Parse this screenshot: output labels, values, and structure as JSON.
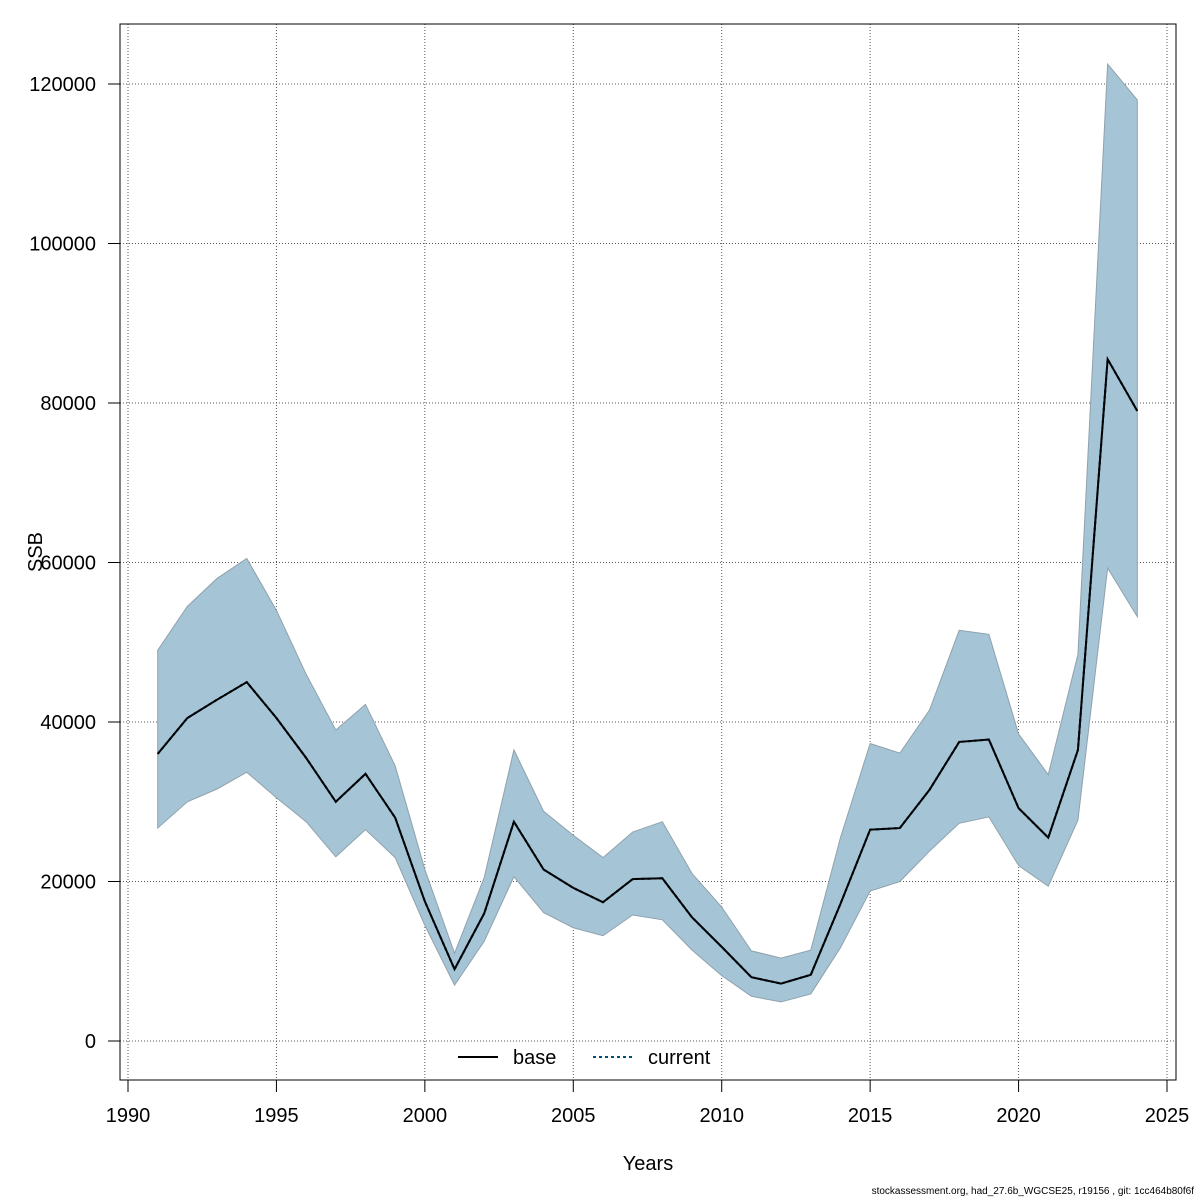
{
  "chart_data": {
    "type": "line",
    "xlabel": "Years",
    "ylabel": "SSB",
    "xlim": [
      1990,
      2025
    ],
    "ylim": [
      0,
      120000
    ],
    "xticks": [
      1990,
      1995,
      2000,
      2005,
      2010,
      2015,
      2020,
      2025
    ],
    "yticks": [
      0,
      20000,
      40000,
      60000,
      80000,
      100000,
      120000
    ],
    "x": [
      1991,
      1992,
      1993,
      1994,
      1995,
      1996,
      1997,
      1998,
      1999,
      2000,
      2001,
      2002,
      2003,
      2004,
      2005,
      2006,
      2007,
      2008,
      2009,
      2010,
      2011,
      2012,
      2013,
      2014,
      2015,
      2016,
      2017,
      2018,
      2019,
      2020,
      2021,
      2022,
      2023,
      2024
    ],
    "series": [
      {
        "name": "base",
        "line_style": "solid",
        "values": [
          36000,
          40500,
          42800,
          45000,
          40500,
          35500,
          30000,
          33500,
          28000,
          17500,
          9000,
          16000,
          27500,
          21500,
          19200,
          17400,
          20300,
          20400,
          15500,
          11800,
          8000,
          7200,
          8300,
          17200,
          26500,
          26700,
          31500,
          37500,
          37800,
          29200,
          25500,
          36500,
          85500,
          79000
        ]
      },
      {
        "name": "current",
        "line_style": "dotted",
        "values": [
          36000,
          40500,
          42800,
          45000,
          40500,
          35500,
          30000,
          33500,
          28000,
          17500,
          9000,
          16000,
          27500,
          21500,
          19200,
          17400,
          20300,
          20400,
          15500,
          11800,
          8000,
          7200,
          8300,
          17200,
          26500,
          26700,
          31500,
          37500,
          37800,
          29200,
          25500,
          36500,
          85500,
          79000
        ]
      }
    ],
    "confidence_band": {
      "upper": [
        49000,
        54500,
        58000,
        60500,
        54000,
        46000,
        39000,
        42200,
        34500,
        21500,
        11000,
        20500,
        36500,
        28800,
        25800,
        23000,
        26200,
        27500,
        21000,
        16800,
        11300,
        10400,
        11400,
        25500,
        37300,
        36100,
        41500,
        51500,
        51000,
        38500,
        33400,
        48500,
        122500,
        118000
      ],
      "lower": [
        26700,
        30000,
        31600,
        33700,
        30500,
        27500,
        23100,
        26500,
        23000,
        14500,
        7000,
        12500,
        20600,
        16100,
        14200,
        13200,
        15800,
        15200,
        11400,
        8200,
        5600,
        4900,
        5900,
        11700,
        18800,
        20000,
        23800,
        27300,
        28100,
        22000,
        19400,
        27700,
        59300,
        53200
      ]
    },
    "grid": true,
    "legend_position": "bottom-center",
    "colors": {
      "band_fill": "#a5c4d5",
      "band_edge": "#8fa2ad",
      "base_line": "#000000",
      "current_line": "#00507a",
      "grid": "#555555"
    }
  },
  "legend": {
    "base": "base",
    "current": "current"
  },
  "footer": "stockassessment.org, had_27.6b_WGCSE25, r19156 , git: 1cc464b80f6f"
}
